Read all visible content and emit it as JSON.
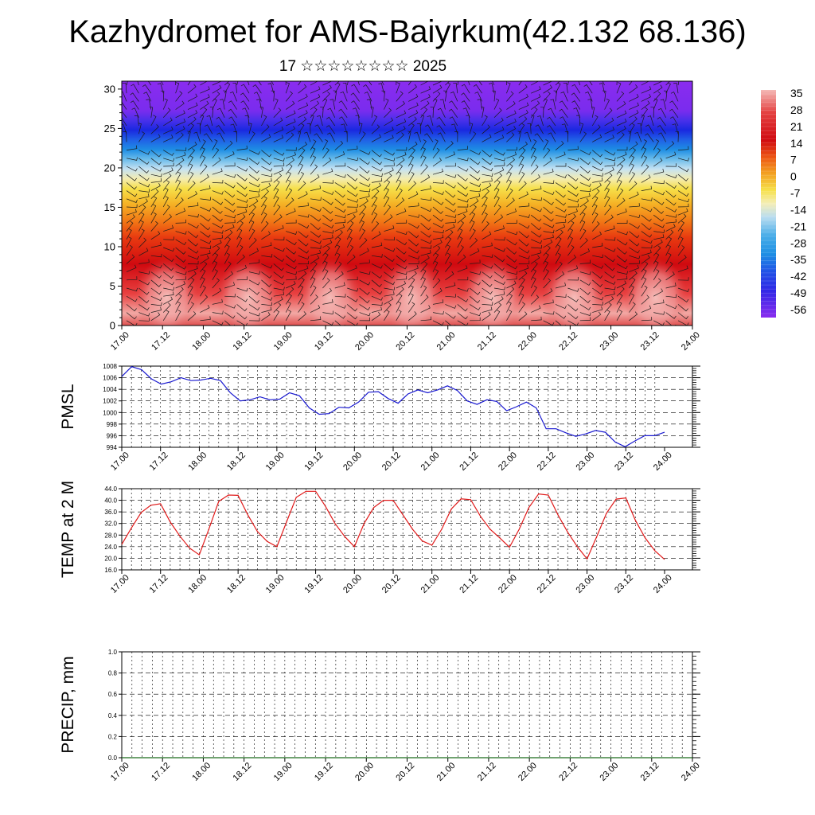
{
  "header": {
    "title": "Kazhydromet for AMS-Baiyrkum(42.132 68.136)",
    "subtitle": "17 ☆☆☆☆☆☆☆☆ 2025"
  },
  "chart_data": [
    {
      "type": "heatmap",
      "title": "Kazhydromet for AMS-Baiyrkum(42.132 68.136)",
      "subtitle": "17 ☆☆☆☆☆☆☆☆ 2025",
      "x_ticks": [
        "17.00",
        "17.12",
        "18.00",
        "18.12",
        "19.00",
        "19.12",
        "20.00",
        "20.12",
        "21.00",
        "21.12",
        "22.00",
        "22.12",
        "23.00",
        "23.12",
        "24.00"
      ],
      "ylim": [
        0,
        31
      ],
      "y_ticks": [
        0,
        5,
        10,
        15,
        20,
        25,
        30
      ],
      "colorbar_labels": [
        "35",
        "28",
        "21",
        "14",
        "7",
        "0",
        "-7",
        "-14",
        "-21",
        "-28",
        "-35",
        "-42",
        "-49",
        "-56"
      ],
      "overlay": "wind barbs",
      "colors": {
        "warm_max": "#f4b3b0",
        "hot": "#d40a10",
        "orange": "#f27a16",
        "yellow": "#f6e04a",
        "light_blue": "#b8dcf0",
        "cyan": "#28a0e6",
        "blue": "#2040e8",
        "purple": "#8a28ee"
      }
    },
    {
      "type": "line",
      "ylabel": "PMSL",
      "x_ticks": [
        "17.00",
        "17.12",
        "18.00",
        "18.12",
        "19.00",
        "19.12",
        "20.00",
        "20.12",
        "21.00",
        "21.12",
        "22.00",
        "22.12",
        "23.00",
        "23.12",
        "24.00"
      ],
      "ylim": [
        994,
        1008
      ],
      "y_ticks": [
        "994",
        "996",
        "998",
        "1000",
        "1002",
        "1004",
        "1006",
        "1008"
      ],
      "series": [
        {
          "color": "#1a1ad0",
          "values": [
            1006.2,
            1007.9,
            1007.4,
            1005.8,
            1004.9,
            1005.3,
            1006.0,
            1005.5,
            1005.6,
            1005.9,
            1005.5,
            1003.4,
            1002.0,
            1002.2,
            1002.7,
            1002.2,
            1002.3,
            1003.4,
            1002.9,
            1000.8,
            999.7,
            999.8,
            1000.9,
            1000.8,
            1001.8,
            1003.5,
            1003.6,
            1002.4,
            1001.6,
            1003.2,
            1003.9,
            1003.4,
            1003.9,
            1004.6,
            1003.8,
            1002.0,
            1001.4,
            1002.2,
            1001.9,
            1000.3,
            1001.0,
            1001.8,
            1000.8,
            997.2,
            997.2,
            996.5,
            995.9,
            996.3,
            996.9,
            996.6,
            994.9,
            994.1,
            995.1,
            996.0,
            996.0,
            996.6
          ]
        }
      ],
      "grid": true
    },
    {
      "type": "line",
      "ylabel": "TEMP at 2 M",
      "x_ticks": [
        "17.00",
        "17.12",
        "18.00",
        "18.12",
        "19.00",
        "19.12",
        "20.00",
        "20.12",
        "21.00",
        "21.12",
        "22.00",
        "22.12",
        "23.00",
        "23.12",
        "24.00"
      ],
      "ylim": [
        16,
        44
      ],
      "y_ticks": [
        "16.0",
        "20.0",
        "24.0",
        "28.0",
        "32.0",
        "36.0",
        "40.0",
        "44.0"
      ],
      "series": [
        {
          "color": "#e01a1a",
          "values": [
            24.8,
            30.5,
            35.8,
            38.3,
            38.8,
            32.5,
            27.6,
            23.5,
            21.2,
            30.2,
            39.6,
            41.8,
            41.7,
            35.0,
            29.2,
            25.8,
            24.0,
            32.5,
            41.0,
            43.1,
            43.1,
            38.0,
            32.0,
            27.5,
            24.0,
            32.0,
            37.5,
            40.0,
            40.0,
            35.0,
            30.0,
            26.0,
            24.5,
            30.0,
            37.0,
            40.5,
            40.2,
            34.5,
            30.0,
            27.0,
            23.8,
            30.0,
            37.5,
            42.2,
            41.8,
            35.0,
            29.0,
            24.0,
            19.8,
            27.5,
            35.5,
            40.4,
            40.8,
            33.0,
            27.0,
            22.6,
            19.6
          ]
        }
      ],
      "grid": true
    },
    {
      "type": "line",
      "ylabel": "PRECIP, mm",
      "x_ticks": [
        "17.00",
        "17.12",
        "18.00",
        "18.12",
        "19.00",
        "19.12",
        "20.00",
        "20.12",
        "21.00",
        "21.12",
        "22.00",
        "22.12",
        "23.00",
        "23.12",
        "24.00"
      ],
      "ylim": [
        0,
        1
      ],
      "y_ticks": [
        "0.0",
        "0.2",
        "0.4",
        "0.6",
        "0.8",
        "1.0"
      ],
      "series": [
        {
          "color": "#1a6a1a",
          "values": [
            0,
            0,
            0,
            0,
            0,
            0,
            0,
            0,
            0,
            0,
            0,
            0,
            0,
            0,
            0,
            0,
            0,
            0,
            0,
            0,
            0,
            0,
            0,
            0,
            0,
            0,
            0,
            0,
            0,
            0,
            0,
            0,
            0,
            0,
            0,
            0,
            0,
            0,
            0,
            0,
            0,
            0,
            0,
            0,
            0,
            0,
            0,
            0,
            0,
            0,
            0,
            0,
            0,
            0,
            0,
            0,
            0
          ]
        }
      ],
      "grid": true
    }
  ]
}
